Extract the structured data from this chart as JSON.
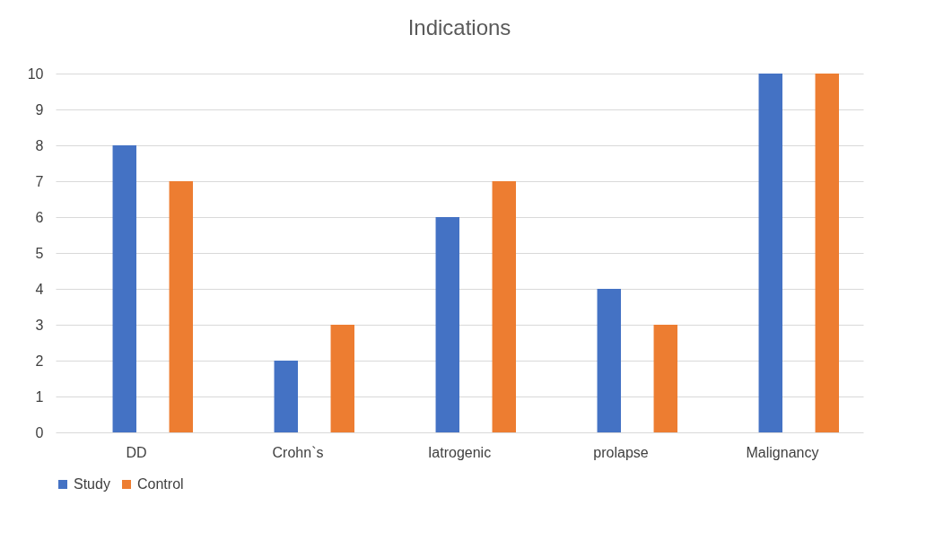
{
  "chart_data": {
    "type": "bar",
    "title": "Indications",
    "categories": [
      "DD",
      "Crohn`s",
      "Iatrogenic",
      "prolapse",
      "Malignancy"
    ],
    "series": [
      {
        "name": "Study",
        "color": "#4472c4",
        "values": [
          8,
          2,
          6,
          4,
          10
        ]
      },
      {
        "name": "Control",
        "color": "#ed7d31",
        "values": [
          7,
          3,
          7,
          3,
          10
        ]
      }
    ],
    "ylim": [
      0,
      10
    ],
    "yticks": [
      0,
      1,
      2,
      3,
      4,
      5,
      6,
      7,
      8,
      9,
      10
    ],
    "grid": "y",
    "legend": "bottom"
  }
}
